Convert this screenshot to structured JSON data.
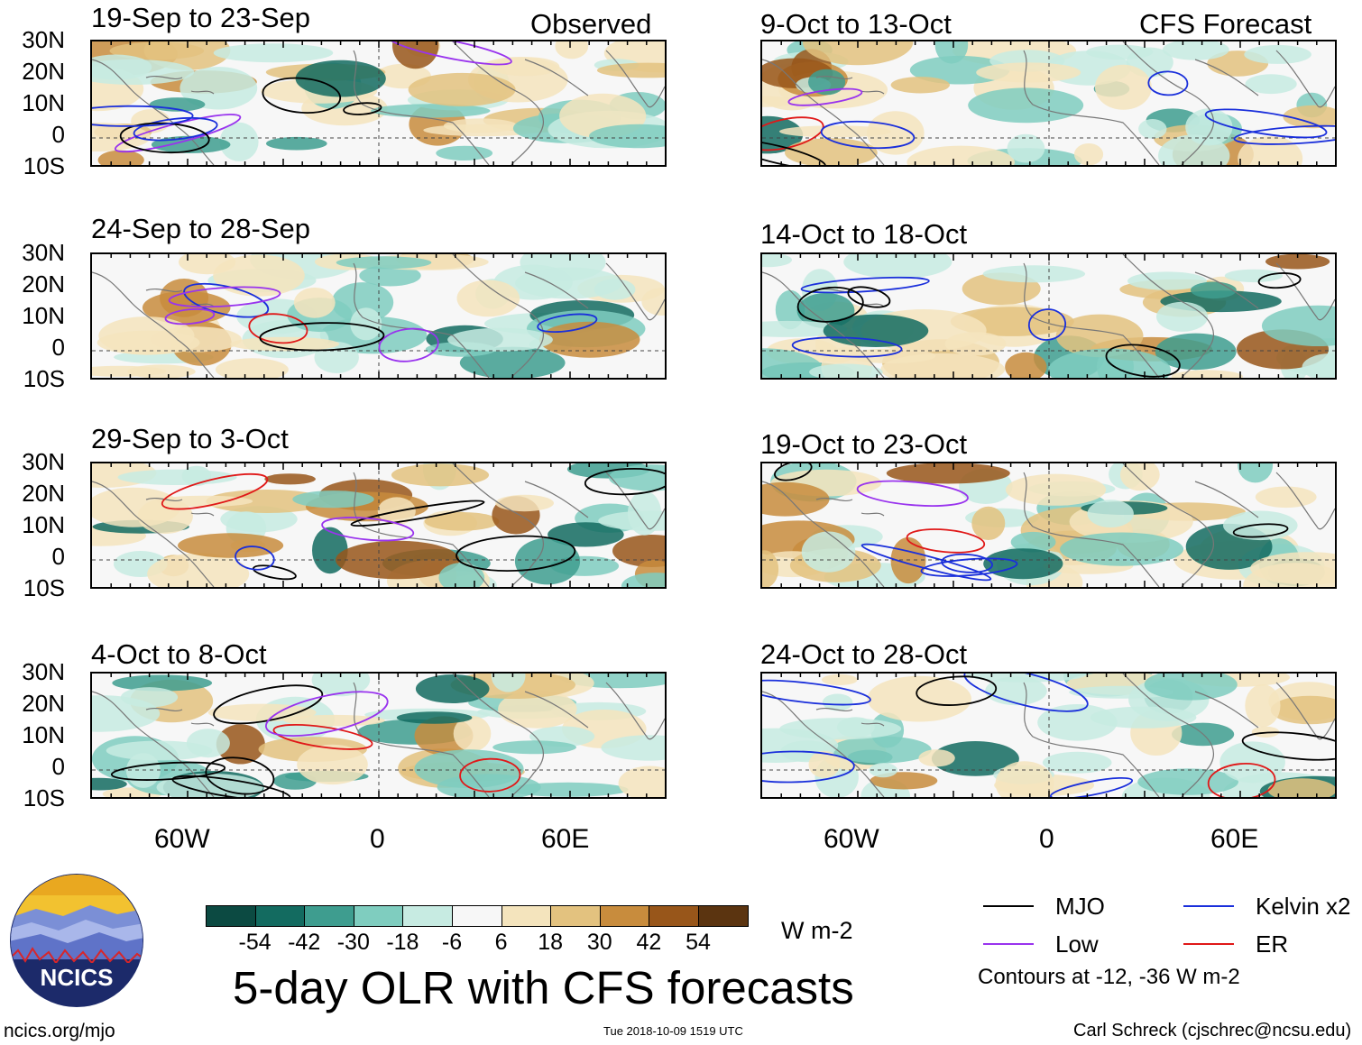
{
  "title": "5-day OLR with CFS forecasts",
  "headers": {
    "observed": "Observed",
    "forecast": "CFS Forecast"
  },
  "panels_left": [
    "19-Sep to 23-Sep",
    "24-Sep to 28-Sep",
    "29-Sep to 3-Oct",
    "4-Oct to 8-Oct"
  ],
  "panels_right": [
    "9-Oct to 13-Oct",
    "14-Oct to 18-Oct",
    "19-Oct to 23-Oct",
    "24-Oct to 28-Oct"
  ],
  "chart_data": {
    "type": "heatmap",
    "variable": "OLR anomaly",
    "units": "W m-2",
    "lat_ticks": [
      "30N",
      "20N",
      "10N",
      "0",
      "10S"
    ],
    "lon_ticks": [
      "60W",
      "0",
      "60E"
    ],
    "colorbar_levels": [
      "-54",
      "-42",
      "-30",
      "-18",
      "-6",
      "6",
      "18",
      "30",
      "42",
      "54"
    ],
    "colorbar_colors": [
      "#0c4a42",
      "#136b60",
      "#3e9d8f",
      "#7fcdbf",
      "#c7ebe2",
      "#f7f7f7",
      "#f4e4bd",
      "#e3c27f",
      "#c88c3d",
      "#98561a",
      "#5b3410"
    ],
    "contour_levels_text": "Contours at -12, -36 W m-2"
  },
  "legend": [
    {
      "label": "MJO",
      "color": "#000000"
    },
    {
      "label": "Kelvin x2",
      "color": "#1a2fdb"
    },
    {
      "label": "Low",
      "color": "#9933ee"
    },
    {
      "label": "ER",
      "color": "#e01818"
    }
  ],
  "logo_text": "NCICS",
  "footer": {
    "left": "ncics.org/mjo",
    "center": "Tue 2018-10-09 1519 UTC",
    "right": "Carl Schreck (cjschrec@ncsu.edu)"
  }
}
